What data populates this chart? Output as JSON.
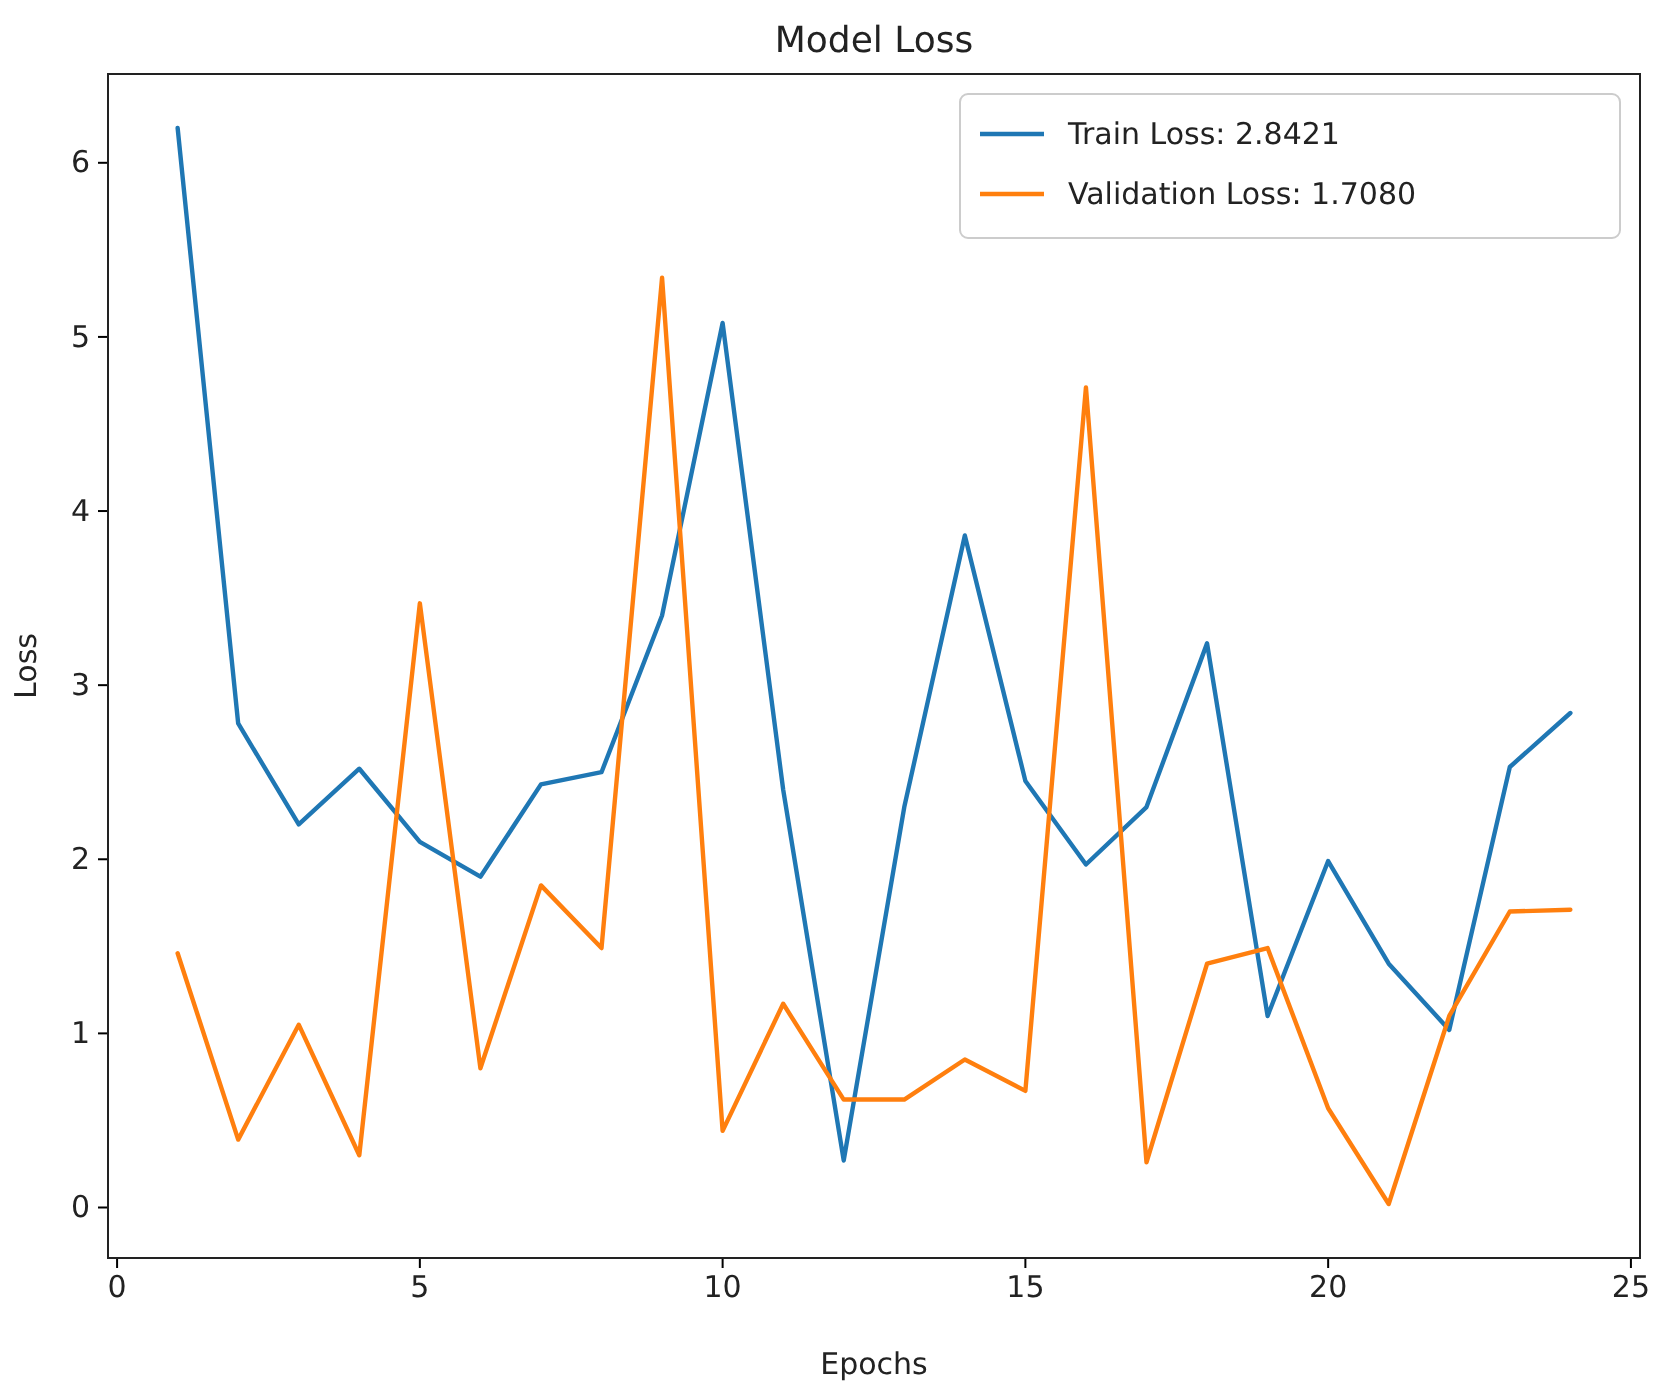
{
  "chart_data": {
    "type": "line",
    "title": "Model Loss",
    "xlabel": "Epochs",
    "ylabel": "Loss",
    "x": [
      1,
      2,
      3,
      4,
      5,
      6,
      7,
      8,
      9,
      10,
      11,
      12,
      13,
      14,
      15,
      16,
      17,
      18,
      19,
      20,
      21,
      22,
      23,
      24
    ],
    "series": [
      {
        "name": "Train Loss: 2.8421",
        "color": "#1f77b4",
        "values": [
          6.2,
          2.78,
          2.2,
          2.52,
          2.1,
          1.9,
          2.43,
          2.5,
          3.4,
          5.08,
          2.4,
          0.27,
          2.3,
          3.86,
          2.45,
          1.97,
          2.3,
          3.24,
          1.1,
          1.99,
          1.4,
          1.02,
          2.53,
          2.84
        ]
      },
      {
        "name": "Validation Loss: 1.7080",
        "color": "#ff7f0e",
        "values": [
          1.46,
          0.39,
          1.05,
          0.3,
          3.47,
          0.8,
          1.85,
          1.49,
          5.34,
          0.44,
          1.17,
          0.62,
          0.62,
          0.85,
          0.67,
          4.71,
          0.26,
          1.4,
          1.49,
          0.57,
          0.02,
          1.1,
          1.7,
          1.71
        ]
      }
    ],
    "xlim": [
      -0.15,
      25.15
    ],
    "xticks": [
      0,
      5,
      10,
      15,
      20,
      25
    ],
    "ylim": [
      -0.29,
      6.51
    ],
    "yticks": [
      0,
      1,
      2,
      3,
      4,
      5,
      6
    ],
    "grid": false,
    "legend": "top right",
    "marker": "none",
    "line_style": "solid"
  }
}
